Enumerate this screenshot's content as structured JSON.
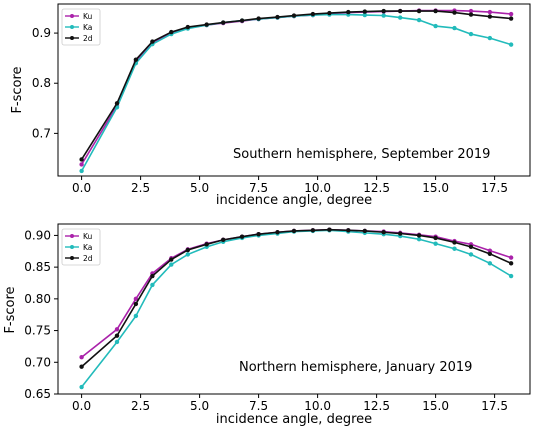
{
  "chart_data": [
    {
      "type": "line",
      "annotation": "Southern hemisphere, September 2019",
      "xlabel": "incidence angle, degree",
      "ylabel": "F-score",
      "xlim": [
        -1.0,
        19.0
      ],
      "ylim": [
        0.615,
        0.958
      ],
      "xticks": [
        "0.0",
        "2.5",
        "5.0",
        "7.5",
        "10.0",
        "12.5",
        "15.0",
        "17.5"
      ],
      "xtick_values": [
        0,
        2.5,
        5,
        7.5,
        10,
        12.5,
        15,
        17.5
      ],
      "yticks": [
        "0.7",
        "0.8",
        "0.9"
      ],
      "ytick_values": [
        0.7,
        0.8,
        0.9
      ],
      "legend_position": "top-left",
      "x": [
        0,
        1.5,
        2.3,
        3.0,
        3.8,
        4.5,
        5.3,
        6.0,
        6.8,
        7.5,
        8.3,
        9.0,
        9.8,
        10.5,
        11.3,
        12.0,
        12.8,
        13.5,
        14.3,
        15.0,
        15.8,
        16.5,
        17.3,
        18.2
      ],
      "series": [
        {
          "name": "Ku",
          "color": "#aa22aa",
          "values": [
            0.638,
            0.755,
            0.843,
            0.88,
            0.9,
            0.91,
            0.916,
            0.92,
            0.924,
            0.928,
            0.931,
            0.934,
            0.936,
            0.939,
            0.941,
            0.942,
            0.943,
            0.944,
            0.945,
            0.945,
            0.945,
            0.944,
            0.942,
            0.938
          ]
        },
        {
          "name": "Ka",
          "color": "#22bbbb",
          "values": [
            0.625,
            0.752,
            0.84,
            0.878,
            0.898,
            0.909,
            0.916,
            0.921,
            0.925,
            0.928,
            0.931,
            0.934,
            0.936,
            0.937,
            0.937,
            0.936,
            0.935,
            0.931,
            0.926,
            0.914,
            0.91,
            0.898,
            0.89,
            0.877
          ]
        },
        {
          "name": "2d",
          "color": "#111111",
          "values": [
            0.648,
            0.76,
            0.847,
            0.883,
            0.902,
            0.912,
            0.917,
            0.921,
            0.925,
            0.929,
            0.932,
            0.935,
            0.938,
            0.94,
            0.942,
            0.943,
            0.944,
            0.944,
            0.944,
            0.944,
            0.941,
            0.937,
            0.933,
            0.929
          ]
        }
      ]
    },
    {
      "type": "line",
      "annotation": "Northern hemisphere, January 2019",
      "xlabel": "incidence angle, degree",
      "ylabel": "F-score",
      "xlim": [
        -1.0,
        19.0
      ],
      "ylim": [
        0.65,
        0.918
      ],
      "xticks": [
        "0.0",
        "2.5",
        "5.0",
        "7.5",
        "10.0",
        "12.5",
        "15.0",
        "17.5"
      ],
      "xtick_values": [
        0,
        2.5,
        5,
        7.5,
        10,
        12.5,
        15,
        17.5
      ],
      "yticks": [
        "0.65",
        "0.70",
        "0.75",
        "0.80",
        "0.85",
        "0.90"
      ],
      "ytick_values": [
        0.65,
        0.7,
        0.75,
        0.8,
        0.85,
        0.9
      ],
      "legend_position": "top-left",
      "x": [
        0,
        1.5,
        2.3,
        3.0,
        3.8,
        4.5,
        5.3,
        6.0,
        6.8,
        7.5,
        8.3,
        9.0,
        9.8,
        10.5,
        11.3,
        12.0,
        12.8,
        13.5,
        14.3,
        15.0,
        15.8,
        16.5,
        17.3,
        18.2
      ],
      "series": [
        {
          "name": "Ku",
          "color": "#aa22aa",
          "values": [
            0.708,
            0.752,
            0.8,
            0.84,
            0.864,
            0.878,
            0.887,
            0.893,
            0.898,
            0.902,
            0.905,
            0.907,
            0.908,
            0.909,
            0.908,
            0.907,
            0.906,
            0.904,
            0.901,
            0.898,
            0.891,
            0.886,
            0.876,
            0.865
          ]
        },
        {
          "name": "Ka",
          "color": "#22bbbb",
          "values": [
            0.661,
            0.732,
            0.773,
            0.822,
            0.854,
            0.87,
            0.882,
            0.89,
            0.896,
            0.9,
            0.903,
            0.906,
            0.907,
            0.908,
            0.906,
            0.904,
            0.902,
            0.899,
            0.894,
            0.887,
            0.879,
            0.87,
            0.856,
            0.836
          ]
        },
        {
          "name": "2d",
          "color": "#111111",
          "values": [
            0.693,
            0.742,
            0.792,
            0.836,
            0.862,
            0.877,
            0.886,
            0.893,
            0.898,
            0.902,
            0.905,
            0.907,
            0.908,
            0.909,
            0.908,
            0.907,
            0.905,
            0.903,
            0.9,
            0.896,
            0.889,
            0.882,
            0.871,
            0.856
          ]
        }
      ]
    }
  ]
}
